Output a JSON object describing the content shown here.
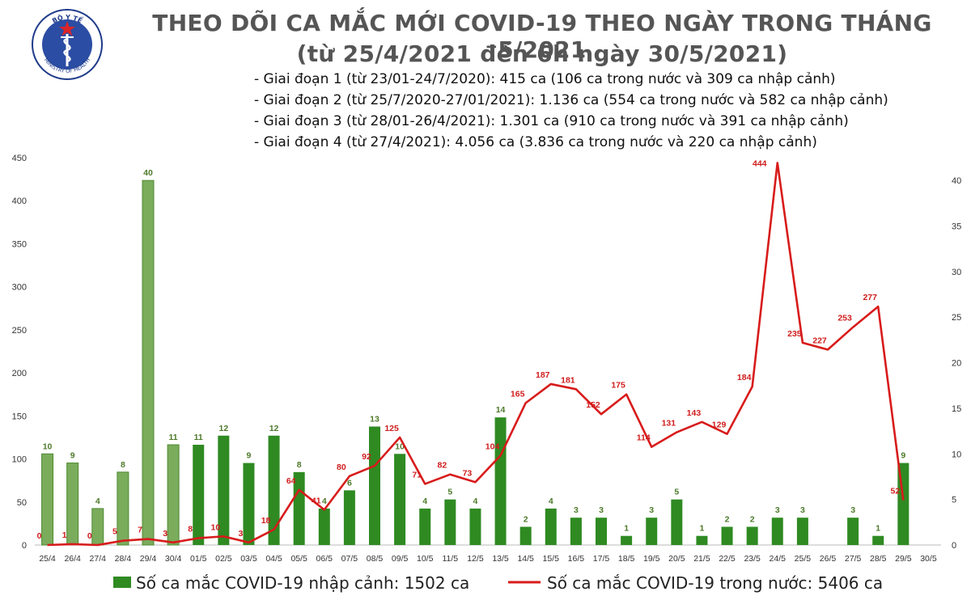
{
  "header": {
    "title_line1": "THEO DÕI CA MẮC MỚI COVID-19 THEO NGÀY TRONG THÁNG 5/2021",
    "title_line2": "(từ 25/4/2021 đến 6h ngày 30/5/2021)",
    "notes": [
      "- Giai đoạn 1 (từ 23/01-24/7/2020): 415 ca (106 ca trong nước và 309 ca nhập cảnh)",
      "- Giai đoạn 2 (từ 25/7/2020-27/01/2021): 1.136 ca (554 ca trong nước và 582 ca nhập cảnh)",
      "- Giai đoạn 3 (từ 28/01-26/4/2021): 1.301 ca (910 ca trong nước và 391 ca nhập cảnh)",
      "- Giai đoạn 4 (từ 27/4/2021): 4.056 ca (3.836 ca trong nước và 220 ca nhập cảnh)"
    ]
  },
  "logo": {
    "text_top": "BỘ Y TẾ",
    "text_bottom": "MINISTRY OF HEALTH",
    "icon": "caduceus-icon",
    "colors": {
      "ring": "#1e3a8a",
      "fill": "#2b4da3",
      "star": "#d9252a"
    }
  },
  "colors": {
    "bar": "#2f8a22",
    "bar_light": "#7aac5c",
    "line": "#d81b1b",
    "bar_label": "#4d7a2a",
    "line_label": "#d01c1c"
  },
  "chart_data": {
    "type": "bar",
    "categories": [
      "25/4",
      "26/4",
      "27/4",
      "28/4",
      "29/4",
      "30/4",
      "01/5",
      "02/5",
      "03/5",
      "04/5",
      "05/5",
      "06/5",
      "07/5",
      "08/5",
      "09/5",
      "10/5",
      "11/5",
      "12/5",
      "13/5",
      "14/5",
      "15/5",
      "16/5",
      "17/5",
      "18/5",
      "19/5",
      "20/5",
      "21/5",
      "22/5",
      "23/5",
      "24/5",
      "25/5",
      "26/5",
      "27/5",
      "28/5",
      "29/5",
      "30/5"
    ],
    "series": [
      {
        "name": "Số ca mắc COVID-19 nhập cảnh: 1502 ca",
        "type": "bar",
        "axis": "right",
        "values": [
          10,
          9,
          4,
          8,
          40,
          11,
          11,
          12,
          9,
          12,
          8,
          4,
          6,
          13,
          10,
          4,
          5,
          4,
          14,
          2,
          4,
          3,
          3,
          1,
          3,
          5,
          1,
          2,
          2,
          3,
          3,
          null,
          3,
          1,
          9,
          null
        ],
        "light_until_index": 5
      },
      {
        "name": "Số ca mắc COVID-19 trong nước: 5406 ca",
        "type": "line",
        "axis": "left",
        "values": [
          0,
          1,
          0,
          5,
          7,
          3,
          8,
          10,
          3,
          18,
          64,
          41,
          80,
          92,
          125,
          71,
          82,
          73,
          104,
          165,
          187,
          181,
          152,
          175,
          114,
          131,
          143,
          129,
          184,
          444,
          235,
          227,
          253,
          277,
          52,
          null
        ]
      }
    ],
    "y_left": {
      "range": [
        0,
        450
      ],
      "ticks": [
        0,
        50,
        100,
        150,
        200,
        250,
        300,
        350,
        400,
        450
      ]
    },
    "y_right": {
      "range": [
        0,
        42.5
      ],
      "ticks": [
        0,
        5,
        10,
        15,
        20,
        25,
        30,
        35,
        40
      ]
    },
    "legend_position": "bottom",
    "grid": false
  }
}
